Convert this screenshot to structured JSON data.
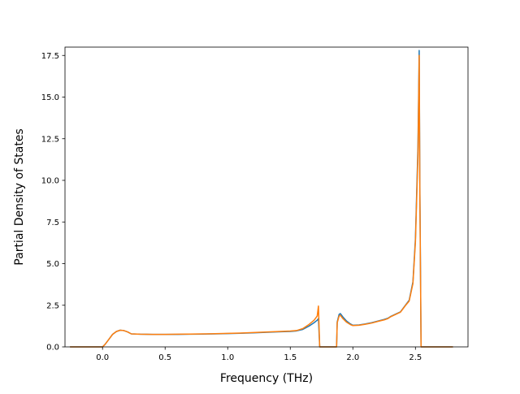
{
  "chart_data": {
    "type": "line",
    "title": "",
    "xlabel": "Frequency (THz)",
    "ylabel": "Partial Density of States",
    "xlim": [
      -0.3,
      2.92
    ],
    "ylim": [
      0,
      18.0
    ],
    "xticks": [
      0.0,
      0.5,
      1.0,
      1.5,
      2.0,
      2.5
    ],
    "xtick_labels": [
      "0.0",
      "0.5",
      "1.0",
      "1.5",
      "2.0",
      "2.5"
    ],
    "yticks": [
      0.0,
      2.5,
      5.0,
      7.5,
      10.0,
      12.5,
      15.0,
      17.5
    ],
    "ytick_labels": [
      "0.0",
      "2.5",
      "5.0",
      "7.5",
      "10.0",
      "12.5",
      "15.0",
      "17.5"
    ],
    "grid": false,
    "legend": "none",
    "series": [
      {
        "color": "#1f77b4",
        "x": [
          -0.26,
          0.0,
          0.02,
          0.05,
          0.08,
          0.11,
          0.14,
          0.17,
          0.2,
          0.23,
          0.3,
          0.4,
          0.5,
          0.6,
          0.7,
          0.8,
          0.9,
          1.0,
          1.1,
          1.2,
          1.3,
          1.4,
          1.5,
          1.55,
          1.6,
          1.65,
          1.69,
          1.715,
          1.725,
          1.735,
          1.75,
          1.8,
          1.85,
          1.87,
          1.875,
          1.89,
          1.9,
          1.92,
          1.95,
          1.98,
          2.0,
          2.05,
          2.1,
          2.15,
          2.2,
          2.25,
          2.28,
          2.3,
          2.35,
          2.38,
          2.4,
          2.42,
          2.45,
          2.48,
          2.5,
          2.52,
          2.53,
          2.535,
          2.545,
          2.55,
          2.6,
          2.7,
          2.8
        ],
        "values": [
          0.0,
          0.0,
          0.15,
          0.45,
          0.75,
          0.92,
          1.0,
          0.98,
          0.9,
          0.78,
          0.76,
          0.75,
          0.75,
          0.75,
          0.76,
          0.77,
          0.78,
          0.8,
          0.82,
          0.84,
          0.87,
          0.9,
          0.93,
          0.96,
          1.05,
          1.25,
          1.45,
          1.6,
          1.7,
          0.0,
          0.0,
          0.0,
          0.0,
          0.0,
          1.5,
          1.95,
          2.0,
          1.8,
          1.55,
          1.38,
          1.3,
          1.32,
          1.38,
          1.45,
          1.55,
          1.65,
          1.72,
          1.82,
          2.0,
          2.1,
          2.3,
          2.5,
          2.8,
          3.9,
          6.5,
          12.0,
          17.8,
          10.0,
          0.0,
          0.0,
          0.0,
          0.0,
          0.0
        ]
      },
      {
        "color": "#ff7f0e",
        "x": [
          -0.26,
          0.0,
          0.02,
          0.05,
          0.08,
          0.11,
          0.14,
          0.17,
          0.2,
          0.23,
          0.3,
          0.4,
          0.5,
          0.6,
          0.7,
          0.8,
          0.9,
          1.0,
          1.1,
          1.2,
          1.3,
          1.4,
          1.5,
          1.55,
          1.6,
          1.65,
          1.69,
          1.715,
          1.725,
          1.735,
          1.75,
          1.8,
          1.85,
          1.87,
          1.875,
          1.89,
          1.9,
          1.92,
          1.95,
          1.98,
          2.0,
          2.05,
          2.1,
          2.15,
          2.2,
          2.25,
          2.28,
          2.3,
          2.35,
          2.38,
          2.4,
          2.42,
          2.45,
          2.48,
          2.5,
          2.52,
          2.53,
          2.535,
          2.545,
          2.55,
          2.6,
          2.7,
          2.8
        ],
        "values": [
          0.0,
          0.0,
          0.15,
          0.45,
          0.75,
          0.92,
          1.0,
          0.98,
          0.9,
          0.78,
          0.76,
          0.75,
          0.75,
          0.76,
          0.77,
          0.78,
          0.79,
          0.81,
          0.83,
          0.86,
          0.89,
          0.92,
          0.95,
          0.98,
          1.1,
          1.35,
          1.6,
          1.85,
          2.45,
          0.0,
          0.0,
          0.0,
          0.0,
          0.0,
          1.45,
          1.85,
          1.9,
          1.7,
          1.48,
          1.34,
          1.28,
          1.3,
          1.36,
          1.43,
          1.53,
          1.62,
          1.7,
          1.8,
          1.98,
          2.08,
          2.28,
          2.48,
          2.75,
          3.8,
          6.3,
          11.5,
          17.5,
          9.5,
          0.0,
          0.0,
          0.0,
          0.0,
          0.0
        ]
      }
    ]
  }
}
